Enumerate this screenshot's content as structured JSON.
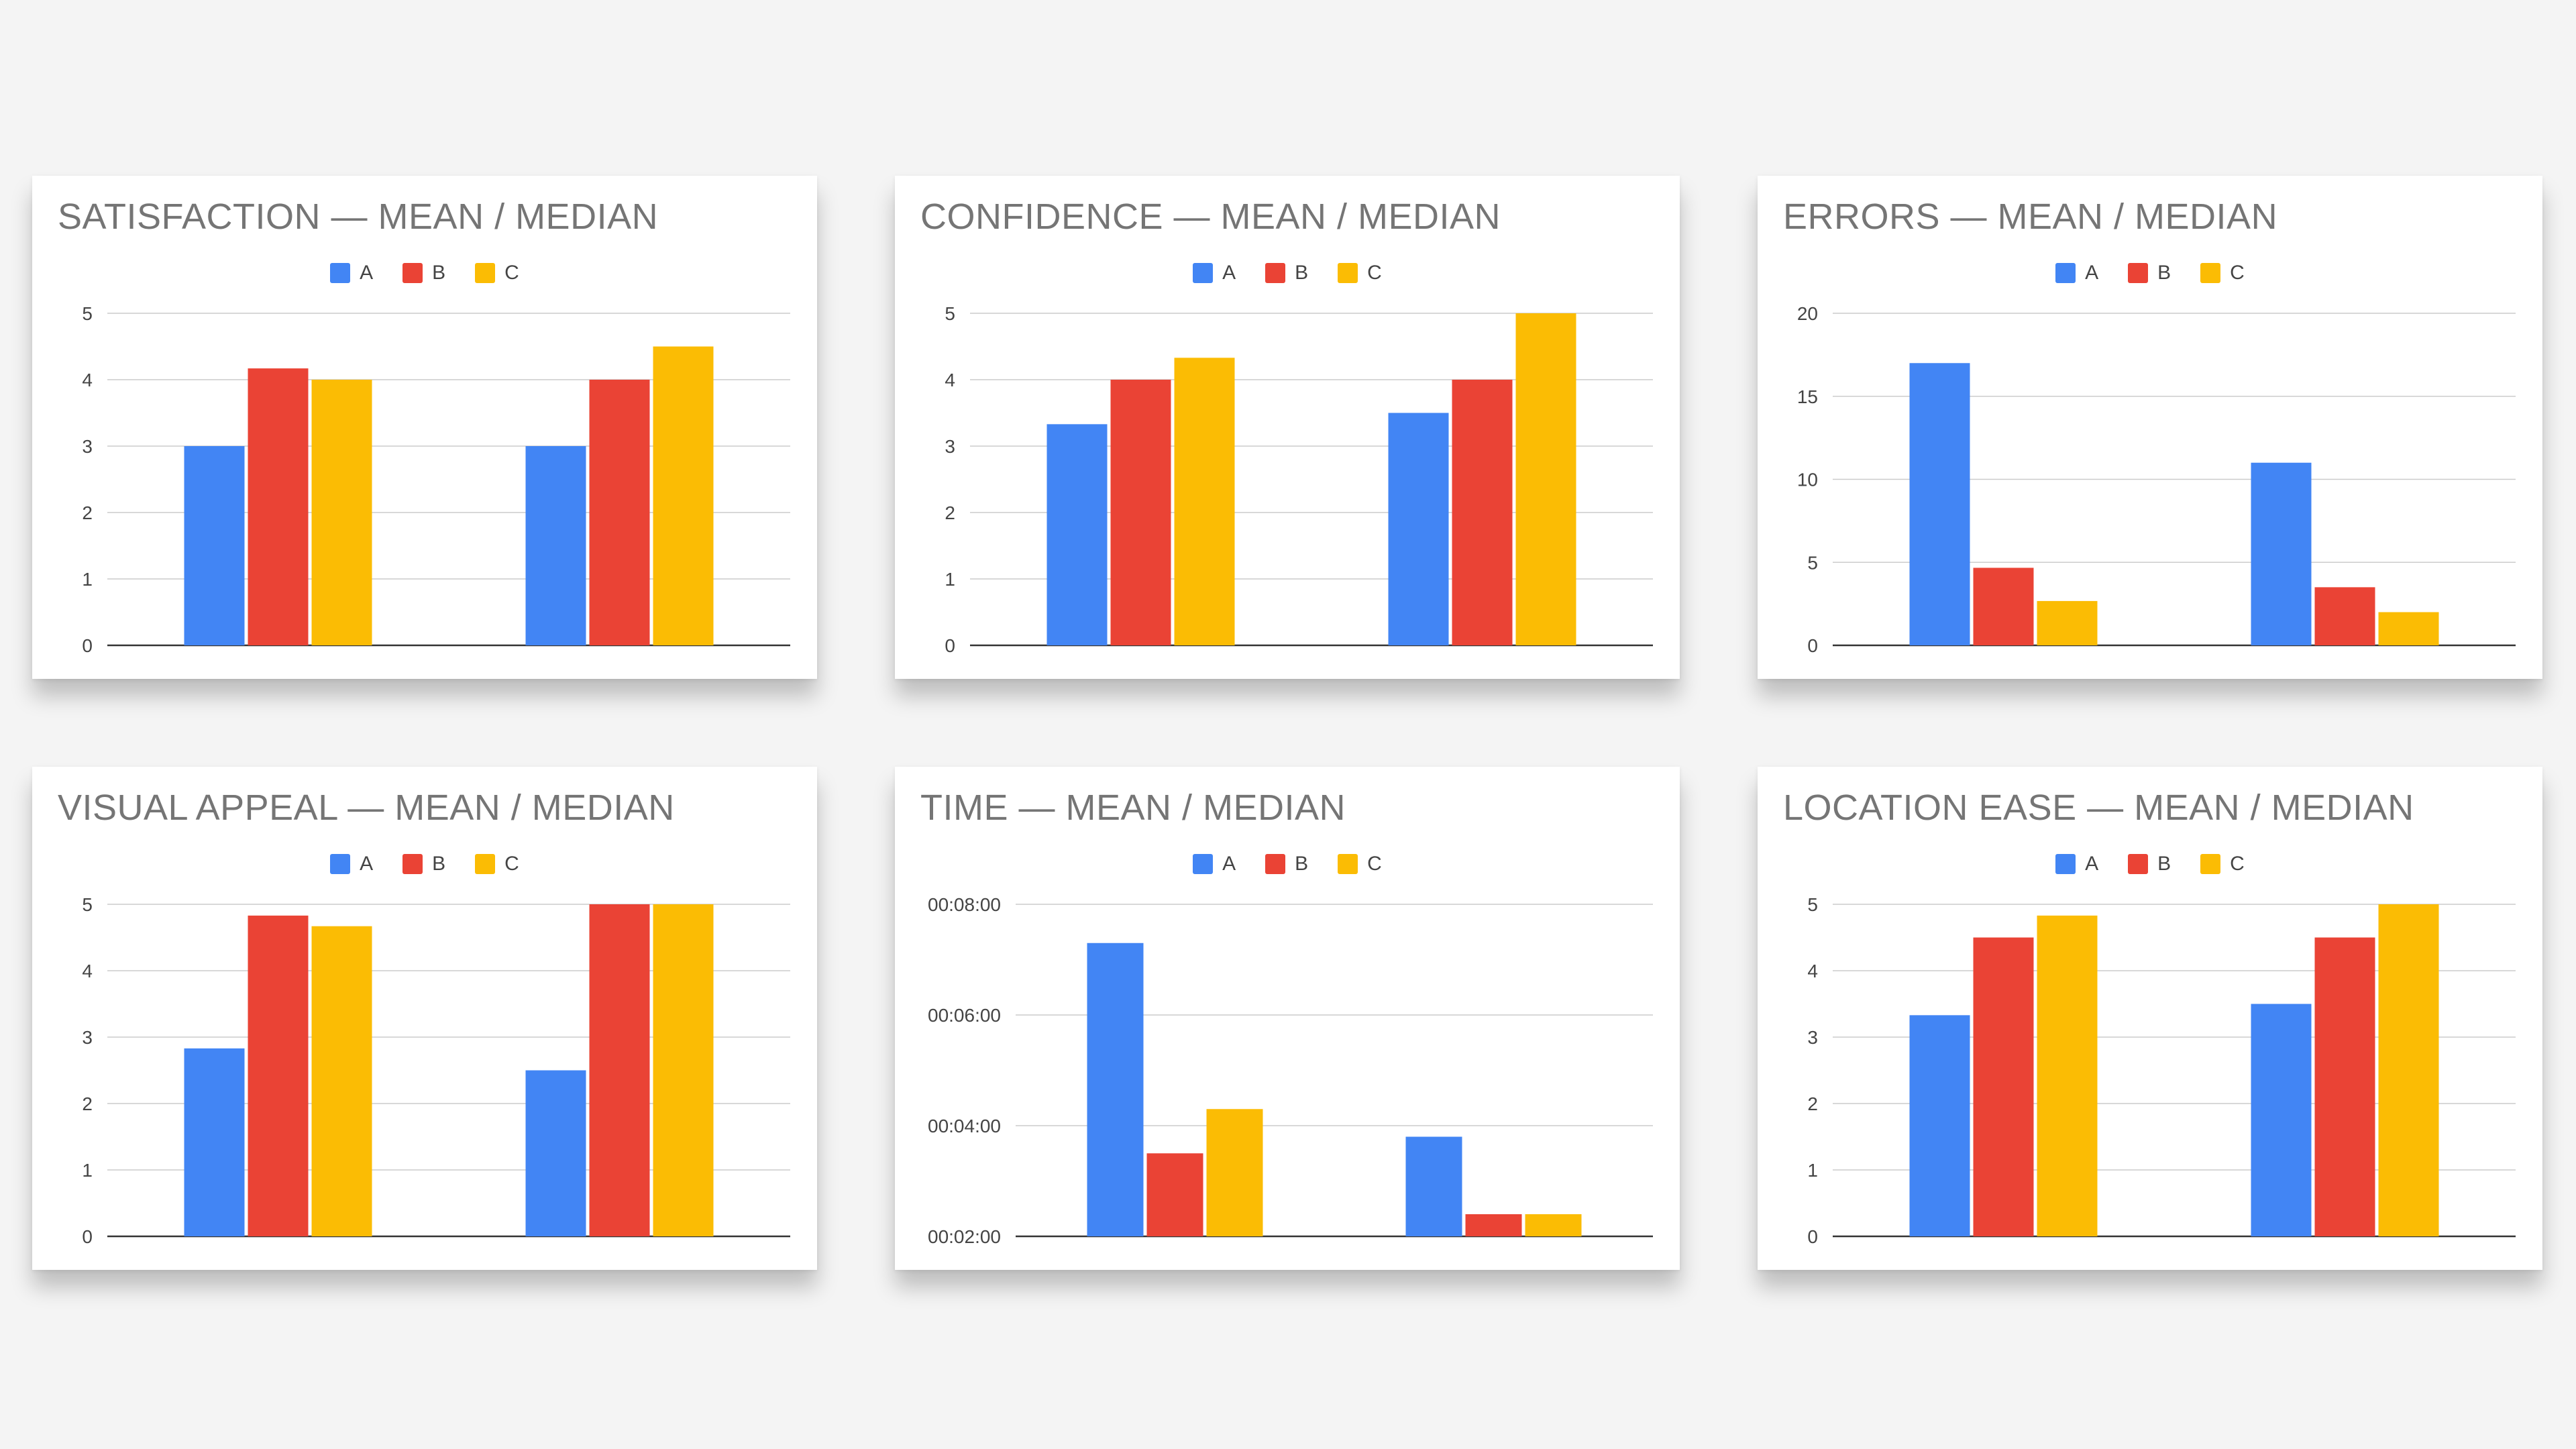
{
  "colors": {
    "A": "#4285f4",
    "B": "#ea4335",
    "C": "#fbbc04"
  },
  "chart_data": [
    {
      "type": "bar",
      "title": "SATISFACTION — MEAN / MEDIAN",
      "categories": [
        "",
        ""
      ],
      "series": [
        {
          "name": "A",
          "values": [
            3,
            3
          ]
        },
        {
          "name": "B",
          "values": [
            4.17,
            4
          ]
        },
        {
          "name": "C",
          "values": [
            4,
            4.5
          ]
        }
      ],
      "ylim": [
        0,
        5
      ],
      "yticks": [
        0,
        1,
        2,
        3,
        4,
        5
      ],
      "ytick_labels": [
        "0",
        "1",
        "2",
        "3",
        "4",
        "5"
      ],
      "grid": true,
      "legend": "top"
    },
    {
      "type": "bar",
      "title": "CONFIDENCE — MEAN / MEDIAN",
      "categories": [
        "",
        ""
      ],
      "series": [
        {
          "name": "A",
          "values": [
            3.33,
            3.5
          ]
        },
        {
          "name": "B",
          "values": [
            4,
            4
          ]
        },
        {
          "name": "C",
          "values": [
            4.33,
            5
          ]
        }
      ],
      "ylim": [
        0,
        5
      ],
      "yticks": [
        0,
        1,
        2,
        3,
        4,
        5
      ],
      "ytick_labels": [
        "0",
        "1",
        "2",
        "3",
        "4",
        "5"
      ],
      "grid": true,
      "legend": "top"
    },
    {
      "type": "bar",
      "title": "ERRORS — MEAN / MEDIAN",
      "categories": [
        "",
        ""
      ],
      "series": [
        {
          "name": "A",
          "values": [
            17,
            11
          ]
        },
        {
          "name": "B",
          "values": [
            4.67,
            3.5
          ]
        },
        {
          "name": "C",
          "values": [
            2.67,
            2
          ]
        }
      ],
      "ylim": [
        0,
        20
      ],
      "yticks": [
        0,
        5,
        10,
        15,
        20
      ],
      "ytick_labels": [
        "0",
        "5",
        "10",
        "15",
        "20"
      ],
      "grid": true,
      "legend": "top"
    },
    {
      "type": "bar",
      "title": "VISUAL APPEAL — MEAN / MEDIAN",
      "categories": [
        "",
        ""
      ],
      "series": [
        {
          "name": "A",
          "values": [
            2.83,
            2.5
          ]
        },
        {
          "name": "B",
          "values": [
            4.83,
            5
          ]
        },
        {
          "name": "C",
          "values": [
            4.67,
            5
          ]
        }
      ],
      "ylim": [
        0,
        5
      ],
      "yticks": [
        0,
        1,
        2,
        3,
        4,
        5
      ],
      "ytick_labels": [
        "0",
        "1",
        "2",
        "3",
        "4",
        "5"
      ],
      "grid": true,
      "legend": "top"
    },
    {
      "type": "bar",
      "title": "TIME — MEAN / MEDIAN",
      "categories": [
        "",
        ""
      ],
      "series": [
        {
          "name": "A",
          "values": [
            "00:07:18",
            "00:03:48"
          ]
        },
        {
          "name": "B",
          "values": [
            "00:03:30",
            "00:02:24"
          ]
        },
        {
          "name": "C",
          "values": [
            "00:04:18",
            "00:02:24"
          ]
        }
      ],
      "ylim": [
        "00:02:00",
        "00:08:00"
      ],
      "yticks": [
        "00:02:00",
        "00:04:00",
        "00:06:00",
        "00:08:00"
      ],
      "ytick_labels": [
        "00:02:00",
        "00:04:00",
        "00:06:00",
        "00:08:00"
      ],
      "grid": true,
      "legend": "top"
    },
    {
      "type": "bar",
      "title": "LOCATION EASE — MEAN / MEDIAN",
      "categories": [
        "",
        ""
      ],
      "series": [
        {
          "name": "A",
          "values": [
            3.33,
            3.5
          ]
        },
        {
          "name": "B",
          "values": [
            4.5,
            4.5
          ]
        },
        {
          "name": "C",
          "values": [
            4.83,
            5
          ]
        }
      ],
      "ylim": [
        0,
        5
      ],
      "yticks": [
        0,
        1,
        2,
        3,
        4,
        5
      ],
      "ytick_labels": [
        "0",
        "1",
        "2",
        "3",
        "4",
        "5"
      ],
      "grid": true,
      "legend": "top"
    }
  ]
}
